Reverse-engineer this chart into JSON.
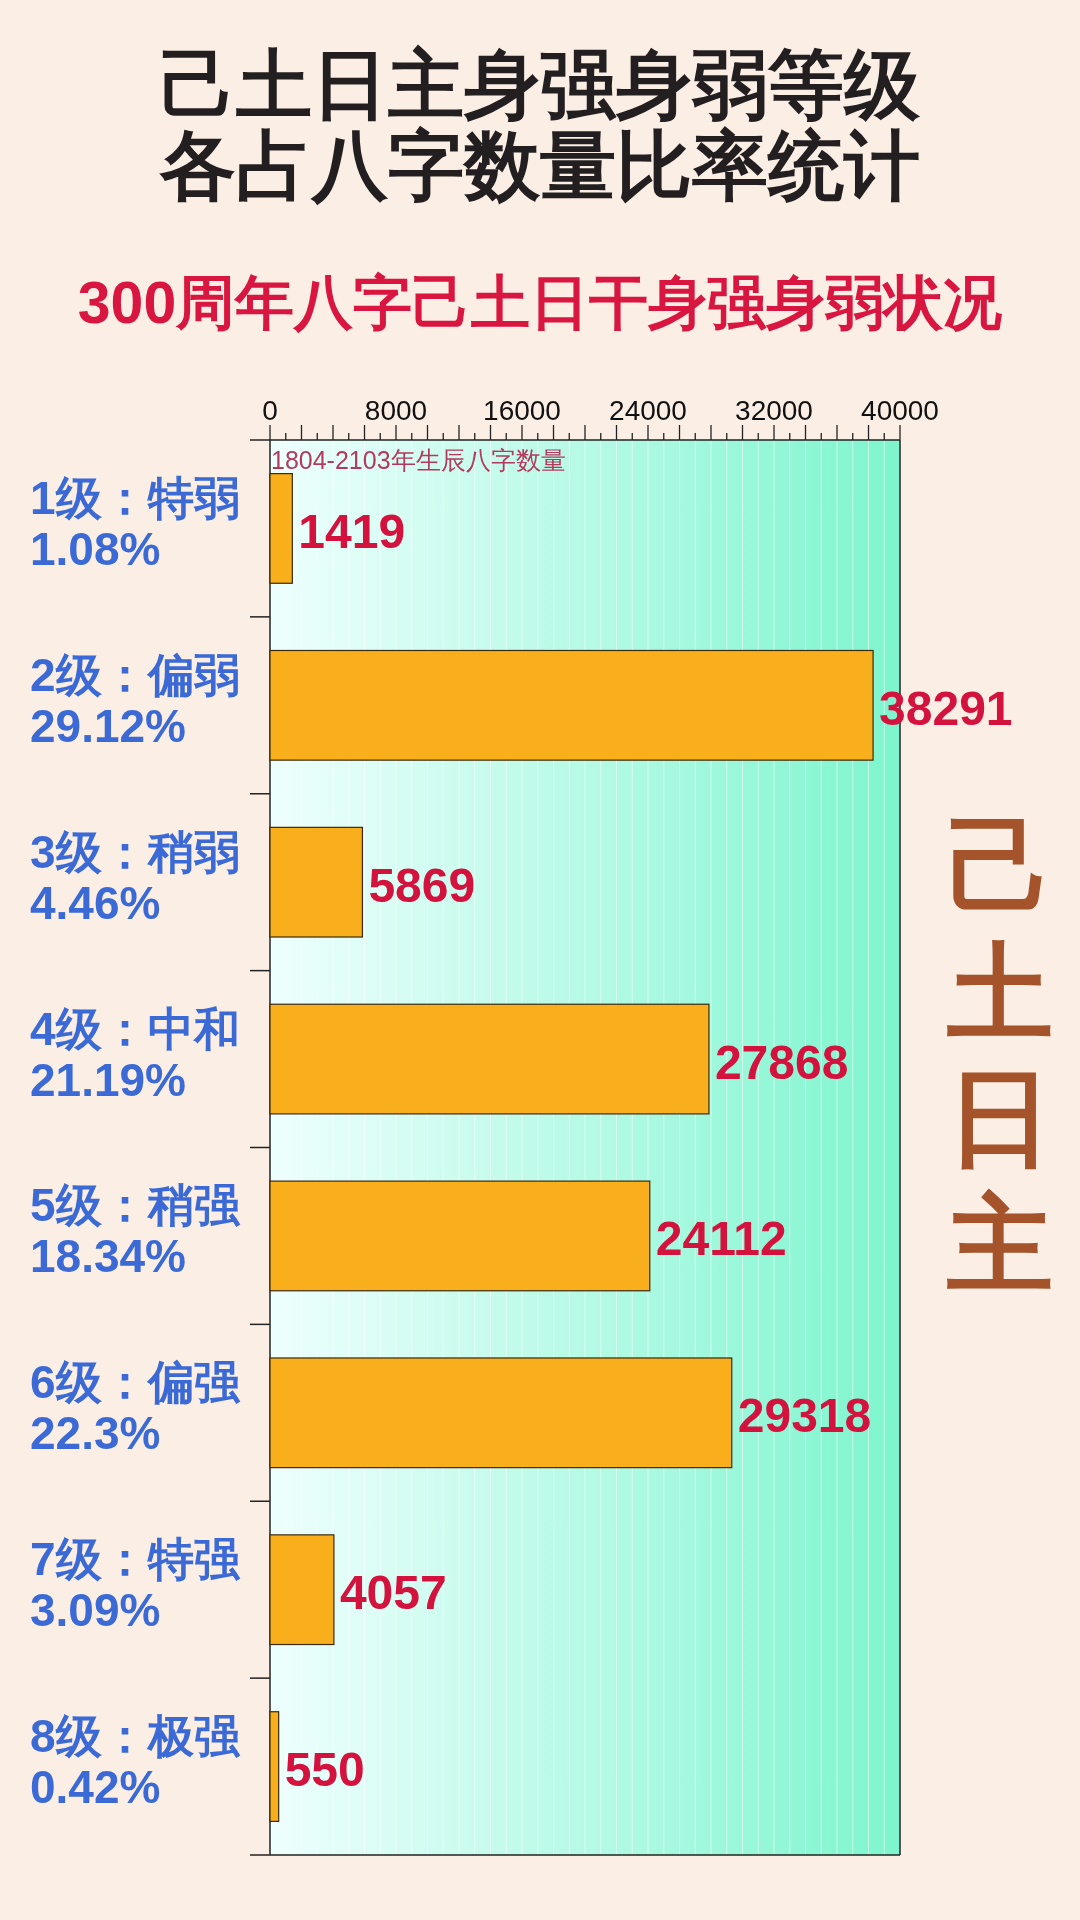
{
  "chart_data": {
    "type": "bar",
    "orientation": "horizontal",
    "title": "己土日主身强身弱等级各占八字数量比率统计",
    "subtitle": "300周年八字己土日干身强身弱状况",
    "xlabel": "1804-2103年生辰八字数量",
    "categories": [
      "1级：特弱\n1.08%",
      "2级：偏弱\n29.12%",
      "3级：稍弱\n4.46%",
      "4级：中和\n21.19%",
      "5级：稍强\n18.34%",
      "6级：偏强\n22.3%",
      "7级：特强\n3.09%",
      "8级：极强\n0.42%"
    ],
    "values": [
      1419,
      38291,
      5869,
      27868,
      24112,
      29318,
      4057,
      550
    ],
    "color": "#f9ae1b",
    "data_labels": true,
    "xlim": [
      0,
      40000
    ],
    "xticks": [
      0,
      {
        "value": 1000,
        "label": null
      },
      {
        "value": 2000,
        "label": null
      },
      {
        "value": 3000,
        "label": null
      },
      {
        "value": 4000,
        "label": null
      },
      {
        "value": 5000,
        "label": null
      },
      {
        "value": 6000,
        "label": null
      },
      {
        "value": 7000,
        "label": null
      },
      8000,
      {
        "value": 9000,
        "label": null
      },
      {
        "value": 10000,
        "label": null
      },
      {
        "value": 11000,
        "label": null
      },
      {
        "value": 12000,
        "label": null
      },
      {
        "value": 13000,
        "label": null
      },
      {
        "value": 14000,
        "label": null
      },
      {
        "value": 15000,
        "label": null
      },
      16000,
      {
        "value": 17000,
        "label": null
      },
      {
        "value": 18000,
        "label": null
      },
      {
        "value": 19000,
        "label": null
      },
      {
        "value": 20000,
        "label": null
      },
      {
        "value": 21000,
        "label": null
      },
      {
        "value": 22000,
        "label": null
      },
      {
        "value": 23000,
        "label": null
      },
      24000,
      {
        "value": 25000,
        "label": null
      },
      {
        "value": 26000,
        "label": null
      },
      {
        "value": 27000,
        "label": null
      },
      {
        "value": 28000,
        "label": null
      },
      {
        "value": 29000,
        "label": null
      },
      {
        "value": 30000,
        "label": null
      },
      {
        "value": 31000,
        "label": null
      },
      32000,
      {
        "value": 33000,
        "label": null
      },
      {
        "value": 34000,
        "label": null
      },
      {
        "value": 35000,
        "label": null
      },
      {
        "value": 36000,
        "label": null
      },
      {
        "value": 37000,
        "label": null
      },
      {
        "value": 38000,
        "label": null
      },
      {
        "value": 39000,
        "label": null
      },
      40000
    ],
    "grid": "x",
    "annotations": [
      "己土日主"
    ]
  }
}
